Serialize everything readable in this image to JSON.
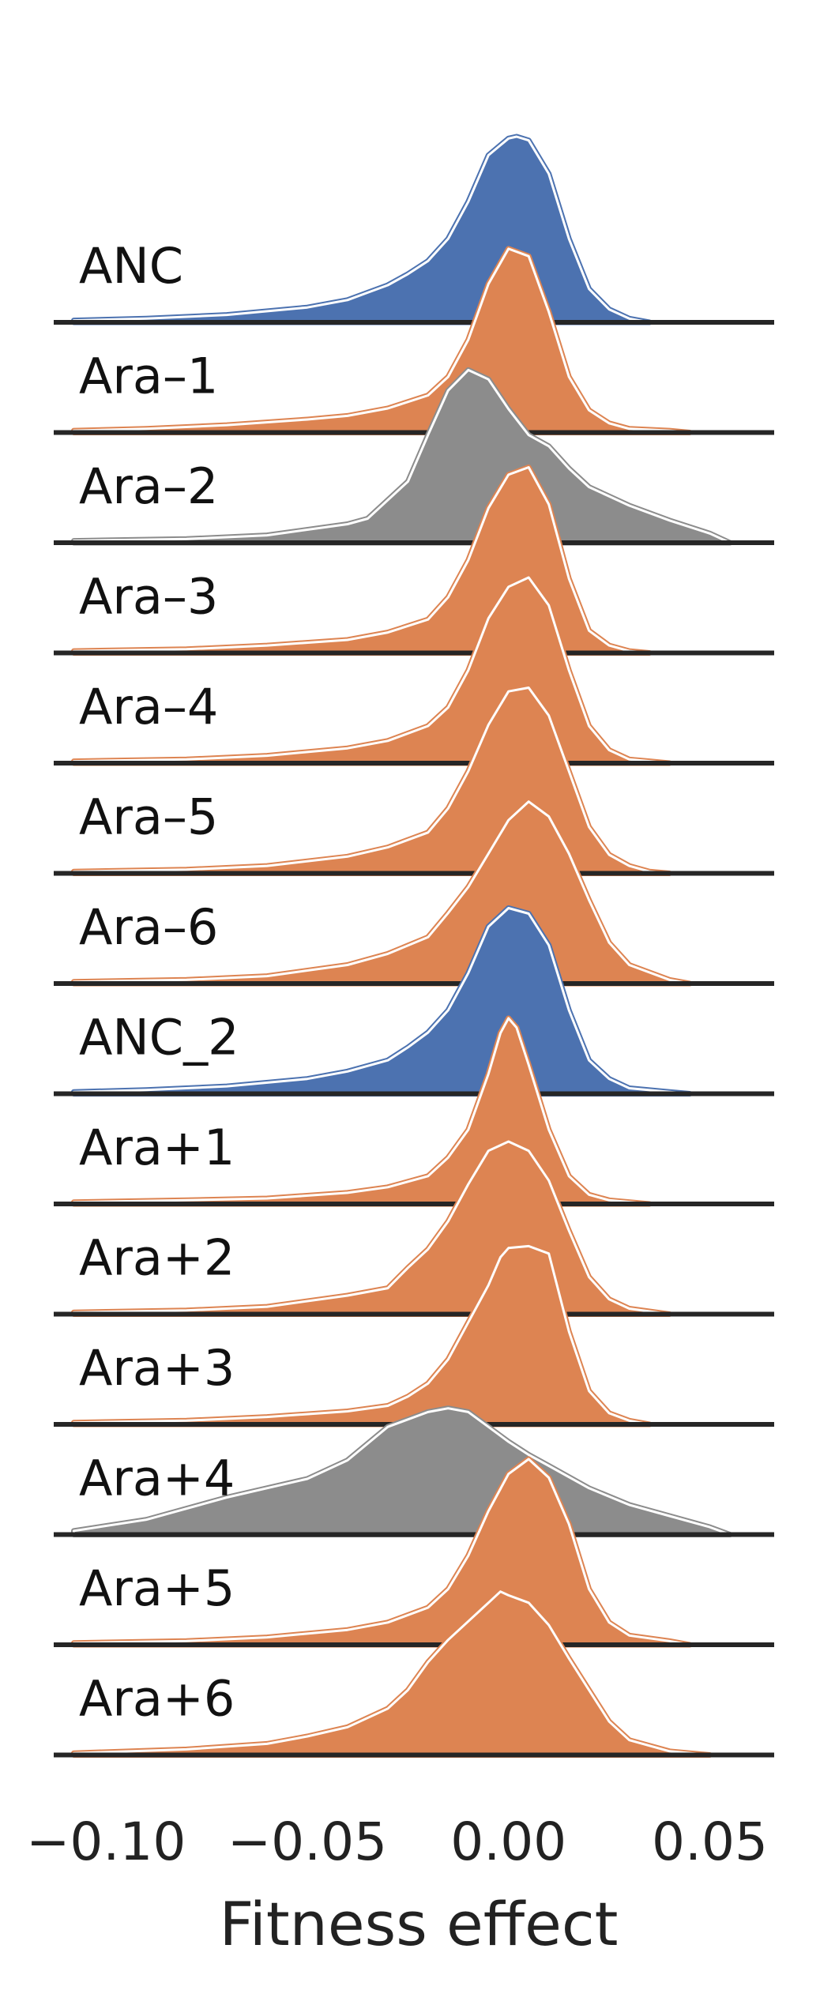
{
  "chart_data": {
    "type": "ridgeline",
    "xlabel": "Fitness effect",
    "xlim": [
      -0.113,
      0.066
    ],
    "xticks": [
      {
        "value": -0.1,
        "label": "−0.10"
      },
      {
        "value": -0.05,
        "label": "−0.05"
      },
      {
        "value": 0.0,
        "label": "0.00"
      },
      {
        "value": 0.05,
        "label": "0.05"
      }
    ],
    "colors": {
      "ancestor": "#4c72b0",
      "population": "#dd8452",
      "excluded": "#8c8c8c",
      "baseline": "#262626"
    },
    "series": [
      {
        "name": "ANC",
        "kind": "ancestor",
        "x": [
          -0.108,
          -0.09,
          -0.07,
          -0.05,
          -0.04,
          -0.035,
          -0.03,
          -0.025,
          -0.02,
          -0.015,
          -0.01,
          -0.005,
          0.0,
          0.002,
          0.005,
          0.01,
          0.015,
          0.02,
          0.025,
          0.03,
          0.035
        ],
        "y": [
          0.01,
          0.02,
          0.04,
          0.08,
          0.12,
          0.16,
          0.2,
          0.26,
          0.33,
          0.45,
          0.65,
          0.9,
          0.99,
          1.0,
          0.98,
          0.8,
          0.45,
          0.18,
          0.07,
          0.02,
          0.0
        ]
      },
      {
        "name": "Ara–1",
        "kind": "population",
        "x": [
          -0.108,
          -0.09,
          -0.07,
          -0.05,
          -0.04,
          -0.03,
          -0.02,
          -0.015,
          -0.01,
          -0.005,
          0.0,
          0.005,
          0.01,
          0.015,
          0.02,
          0.025,
          0.03,
          0.04,
          0.045
        ],
        "y": [
          0.01,
          0.02,
          0.04,
          0.07,
          0.09,
          0.13,
          0.2,
          0.3,
          0.5,
          0.8,
          0.99,
          0.95,
          0.65,
          0.3,
          0.12,
          0.05,
          0.02,
          0.01,
          0.0
        ]
      },
      {
        "name": "Ara–2",
        "kind": "excluded",
        "x": [
          -0.108,
          -0.08,
          -0.06,
          -0.04,
          -0.035,
          -0.025,
          -0.02,
          -0.015,
          -0.01,
          -0.005,
          0.0,
          0.005,
          0.01,
          0.015,
          0.02,
          0.03,
          0.04,
          0.05,
          0.055
        ],
        "y": [
          0.01,
          0.02,
          0.04,
          0.1,
          0.13,
          0.33,
          0.58,
          0.82,
          0.93,
          0.88,
          0.72,
          0.58,
          0.52,
          0.4,
          0.3,
          0.2,
          0.12,
          0.05,
          0.0
        ]
      },
      {
        "name": "Ara–3",
        "kind": "population",
        "x": [
          -0.108,
          -0.08,
          -0.06,
          -0.04,
          -0.03,
          -0.02,
          -0.015,
          -0.01,
          -0.005,
          0.0,
          0.005,
          0.01,
          0.015,
          0.02,
          0.025,
          0.03,
          0.035
        ],
        "y": [
          0.01,
          0.02,
          0.04,
          0.07,
          0.11,
          0.18,
          0.3,
          0.5,
          0.78,
          0.96,
          1.0,
          0.8,
          0.4,
          0.12,
          0.04,
          0.01,
          0.0
        ]
      },
      {
        "name": "Ara–4",
        "kind": "population",
        "x": [
          -0.108,
          -0.08,
          -0.06,
          -0.04,
          -0.03,
          -0.02,
          -0.015,
          -0.01,
          -0.005,
          0.0,
          0.005,
          0.01,
          0.015,
          0.02,
          0.025,
          0.03,
          0.035,
          0.04
        ],
        "y": [
          0.01,
          0.02,
          0.04,
          0.08,
          0.12,
          0.2,
          0.3,
          0.5,
          0.78,
          0.95,
          1.0,
          0.85,
          0.5,
          0.2,
          0.07,
          0.02,
          0.01,
          0.0
        ]
      },
      {
        "name": "Ara–5",
        "kind": "population",
        "x": [
          -0.108,
          -0.08,
          -0.06,
          -0.04,
          -0.03,
          -0.02,
          -0.015,
          -0.01,
          -0.005,
          0.0,
          0.005,
          0.01,
          0.015,
          0.02,
          0.025,
          0.03,
          0.035,
          0.04
        ],
        "y": [
          0.01,
          0.02,
          0.04,
          0.09,
          0.14,
          0.22,
          0.35,
          0.55,
          0.8,
          0.98,
          1.0,
          0.85,
          0.55,
          0.25,
          0.1,
          0.04,
          0.01,
          0.0
        ]
      },
      {
        "name": "Ara–6",
        "kind": "population",
        "x": [
          -0.108,
          -0.08,
          -0.06,
          -0.04,
          -0.03,
          -0.02,
          -0.015,
          -0.01,
          -0.005,
          0.0,
          0.005,
          0.01,
          0.015,
          0.02,
          0.025,
          0.03,
          0.04,
          0.045
        ],
        "y": [
          0.01,
          0.02,
          0.04,
          0.1,
          0.16,
          0.25,
          0.38,
          0.52,
          0.7,
          0.88,
          0.98,
          0.9,
          0.7,
          0.45,
          0.22,
          0.1,
          0.02,
          0.0
        ]
      },
      {
        "name": "ANC_2",
        "kind": "ancestor",
        "x": [
          -0.108,
          -0.09,
          -0.07,
          -0.05,
          -0.04,
          -0.03,
          -0.025,
          -0.02,
          -0.015,
          -0.01,
          -0.005,
          0.0,
          0.005,
          0.01,
          0.015,
          0.02,
          0.025,
          0.03,
          0.04,
          0.045
        ],
        "y": [
          0.01,
          0.02,
          0.04,
          0.08,
          0.12,
          0.18,
          0.25,
          0.33,
          0.45,
          0.65,
          0.9,
          1.0,
          0.97,
          0.8,
          0.45,
          0.18,
          0.08,
          0.03,
          0.01,
          0.0
        ]
      },
      {
        "name": "Ara+1",
        "kind": "population",
        "x": [
          -0.108,
          -0.08,
          -0.06,
          -0.04,
          -0.03,
          -0.02,
          -0.015,
          -0.01,
          -0.005,
          -0.002,
          0.0,
          0.002,
          0.005,
          0.01,
          0.015,
          0.02,
          0.025,
          0.035
        ],
        "y": [
          0.01,
          0.02,
          0.03,
          0.06,
          0.09,
          0.15,
          0.25,
          0.4,
          0.7,
          0.92,
          1.0,
          0.95,
          0.75,
          0.4,
          0.15,
          0.05,
          0.02,
          0.0
        ]
      },
      {
        "name": "Ara+2",
        "kind": "population",
        "x": [
          -0.108,
          -0.08,
          -0.06,
          -0.04,
          -0.03,
          -0.025,
          -0.02,
          -0.015,
          -0.01,
          -0.005,
          0.0,
          0.005,
          0.01,
          0.015,
          0.02,
          0.025,
          0.03,
          0.04
        ],
        "y": [
          0.01,
          0.02,
          0.04,
          0.1,
          0.14,
          0.25,
          0.35,
          0.5,
          0.7,
          0.88,
          0.93,
          0.88,
          0.72,
          0.45,
          0.2,
          0.08,
          0.03,
          0.0
        ]
      },
      {
        "name": "Ara+3",
        "kind": "population",
        "x": [
          -0.108,
          -0.08,
          -0.06,
          -0.04,
          -0.03,
          -0.025,
          -0.02,
          -0.015,
          -0.01,
          -0.005,
          -0.002,
          0.0,
          0.005,
          0.01,
          0.015,
          0.02,
          0.025,
          0.03,
          0.035
        ],
        "y": [
          0.01,
          0.02,
          0.04,
          0.07,
          0.1,
          0.15,
          0.22,
          0.35,
          0.55,
          0.75,
          0.9,
          0.95,
          0.96,
          0.92,
          0.5,
          0.18,
          0.06,
          0.02,
          0.0
        ]
      },
      {
        "name": "Ara+4",
        "kind": "excluded",
        "x": [
          -0.108,
          -0.09,
          -0.07,
          -0.05,
          -0.04,
          -0.03,
          -0.02,
          -0.015,
          -0.01,
          -0.005,
          0.0,
          0.005,
          0.01,
          0.02,
          0.03,
          0.04,
          0.05,
          0.055
        ],
        "y": [
          0.02,
          0.08,
          0.2,
          0.3,
          0.4,
          0.58,
          0.66,
          0.68,
          0.66,
          0.58,
          0.5,
          0.43,
          0.37,
          0.25,
          0.16,
          0.1,
          0.04,
          0.0
        ]
      },
      {
        "name": "Ara+5",
        "kind": "population",
        "x": [
          -0.108,
          -0.08,
          -0.06,
          -0.04,
          -0.03,
          -0.02,
          -0.015,
          -0.01,
          -0.005,
          0.0,
          0.005,
          0.01,
          0.015,
          0.02,
          0.025,
          0.03,
          0.04,
          0.045
        ],
        "y": [
          0.01,
          0.02,
          0.04,
          0.08,
          0.12,
          0.2,
          0.3,
          0.48,
          0.72,
          0.92,
          1.0,
          0.9,
          0.65,
          0.3,
          0.12,
          0.05,
          0.02,
          0.0
        ]
      },
      {
        "name": "Ara+6",
        "kind": "population",
        "x": [
          -0.108,
          -0.08,
          -0.06,
          -0.05,
          -0.04,
          -0.03,
          -0.025,
          -0.02,
          -0.015,
          -0.01,
          -0.005,
          -0.002,
          0.0,
          0.005,
          0.01,
          0.015,
          0.02,
          0.025,
          0.03,
          0.04,
          0.05
        ],
        "y": [
          0.01,
          0.03,
          0.06,
          0.1,
          0.15,
          0.25,
          0.35,
          0.5,
          0.62,
          0.72,
          0.82,
          0.88,
          0.86,
          0.82,
          0.7,
          0.52,
          0.35,
          0.18,
          0.08,
          0.02,
          0.0
        ]
      }
    ]
  }
}
